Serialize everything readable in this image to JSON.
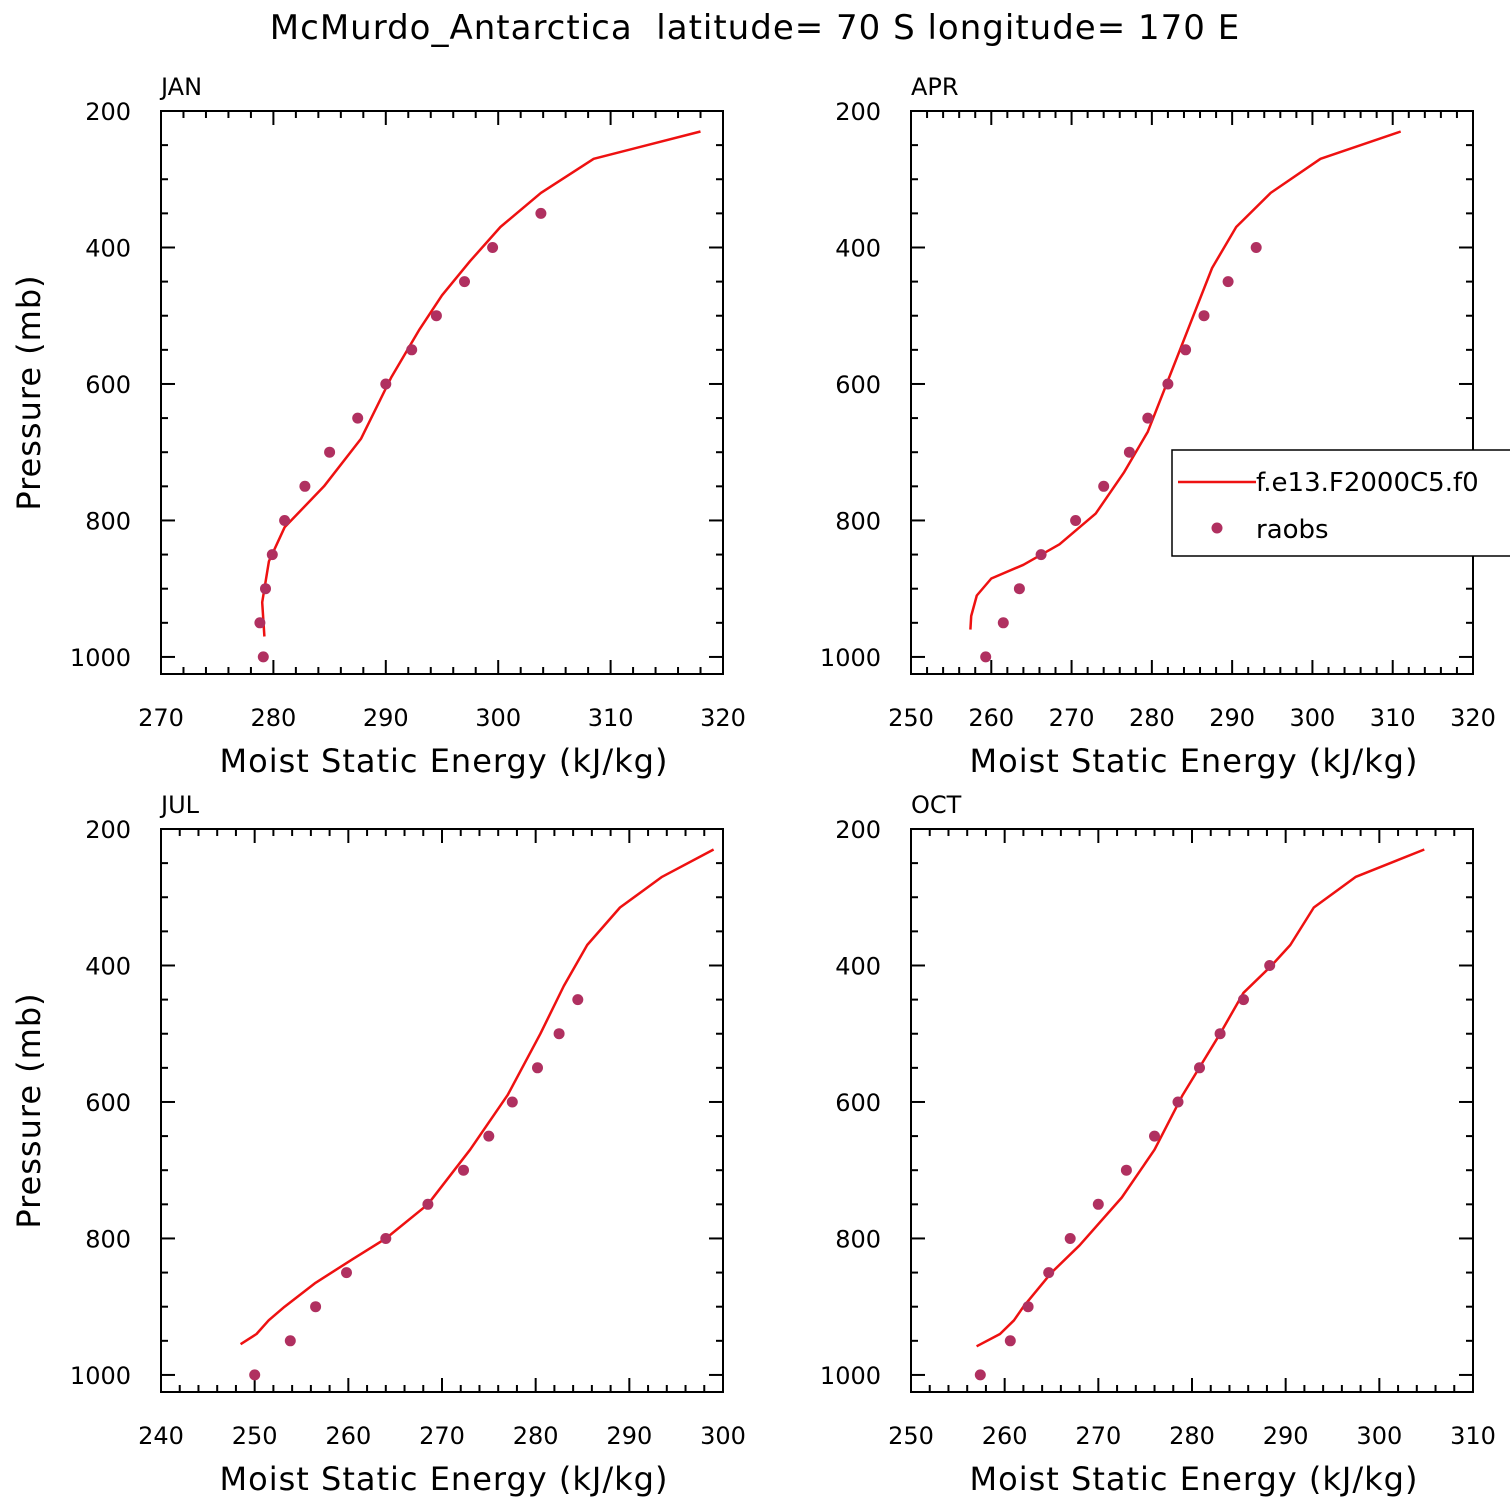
{
  "figure": {
    "title": "McMurdo_Antarctica  latitude= 70 S longitude= 170 E",
    "colors": {
      "model": "#ee1111",
      "obs": "#b03060",
      "axes": "#000000"
    },
    "legend": {
      "placement": "right-middle of APR panel (clipped by figure edge)",
      "entries": [
        {
          "label": "f.e13.F2000C5.f0",
          "style": "line",
          "color": "#ee1111"
        },
        {
          "label": "raobs",
          "style": "marker",
          "color": "#b03060"
        }
      ]
    }
  },
  "chart_data": [
    {
      "type": "line",
      "panel_label": "JAN",
      "xlabel": "Moist Static Energy (kJ/kg)",
      "ylabel": "Pressure (mb)",
      "xlim": [
        270,
        320
      ],
      "xticks": [
        270,
        280,
        290,
        300,
        310,
        320
      ],
      "ylim": [
        200,
        1025
      ],
      "yticks": [
        200,
        400,
        600,
        800,
        1000
      ],
      "y_inverted": true,
      "series": [
        {
          "name": "f.e13.F2000C5.f0",
          "kind": "line",
          "x": [
            318.0,
            308.5,
            303.8,
            300.2,
            297.5,
            295.0,
            293.0,
            290.5,
            287.8,
            284.5,
            281.0,
            279.6,
            279.0,
            279.2
          ],
          "y": [
            230,
            270,
            320,
            370,
            420,
            470,
            520,
            590,
            680,
            750,
            810,
            860,
            920,
            970
          ]
        },
        {
          "name": "raobs",
          "kind": "scatter",
          "x": [
            303.8,
            299.5,
            297.0,
            294.5,
            292.3,
            290.0,
            287.5,
            285.0,
            282.8,
            281.0,
            279.9,
            279.3,
            278.8,
            279.1
          ],
          "y": [
            350,
            400,
            450,
            500,
            550,
            600,
            650,
            700,
            750,
            800,
            850,
            900,
            950,
            1000
          ]
        }
      ]
    },
    {
      "type": "line",
      "panel_label": "APR",
      "xlabel": "Moist Static Energy (kJ/kg)",
      "ylabel": "",
      "xlim": [
        250,
        320
      ],
      "xticks": [
        250,
        260,
        270,
        280,
        290,
        300,
        310,
        320
      ],
      "ylim": [
        200,
        1025
      ],
      "yticks": [
        200,
        400,
        600,
        800,
        1000
      ],
      "y_inverted": true,
      "series": [
        {
          "name": "f.e13.F2000C5.f0",
          "kind": "line",
          "x": [
            311.0,
            301.0,
            294.8,
            290.5,
            287.5,
            285.5,
            283.5,
            281.5,
            279.5,
            276.5,
            273.0,
            268.5,
            264.0,
            260.0,
            258.2,
            257.5,
            257.4
          ],
          "y": [
            230,
            270,
            320,
            370,
            430,
            490,
            550,
            610,
            670,
            730,
            790,
            835,
            865,
            885,
            910,
            940,
            960
          ]
        },
        {
          "name": "raobs",
          "kind": "scatter",
          "x": [
            293.0,
            289.5,
            286.5,
            284.2,
            282.0,
            279.5,
            277.2,
            274.0,
            270.5,
            266.2,
            263.5,
            261.5,
            259.3
          ],
          "y": [
            400,
            450,
            500,
            550,
            600,
            650,
            700,
            750,
            800,
            850,
            900,
            950,
            1000
          ]
        }
      ]
    },
    {
      "type": "line",
      "panel_label": "JUL",
      "xlabel": "Moist Static Energy (kJ/kg)",
      "ylabel": "Pressure (mb)",
      "xlim": [
        240,
        300
      ],
      "xticks": [
        240,
        250,
        260,
        270,
        280,
        290,
        300
      ],
      "ylim": [
        200,
        1025
      ],
      "yticks": [
        200,
        400,
        600,
        800,
        1000
      ],
      "y_inverted": true,
      "series": [
        {
          "name": "f.e13.F2000C5.f0",
          "kind": "line",
          "x": [
            299.0,
            293.5,
            289.0,
            285.5,
            283.0,
            280.5,
            277.0,
            273.0,
            268.5,
            264.0,
            260.5,
            256.5,
            253.2,
            251.5,
            250.2,
            248.5
          ],
          "y": [
            230,
            270,
            315,
            370,
            430,
            500,
            590,
            670,
            750,
            800,
            830,
            865,
            900,
            920,
            940,
            955
          ]
        },
        {
          "name": "raobs",
          "kind": "scatter",
          "x": [
            284.5,
            282.5,
            280.2,
            277.5,
            275.0,
            272.3,
            268.5,
            264.0,
            259.8,
            256.5,
            253.8,
            250.0
          ],
          "y": [
            450,
            500,
            550,
            600,
            650,
            700,
            750,
            800,
            850,
            900,
            950,
            1000
          ]
        }
      ]
    },
    {
      "type": "line",
      "panel_label": "OCT",
      "xlabel": "Moist Static Energy (kJ/kg)",
      "ylabel": "",
      "xlim": [
        250,
        310
      ],
      "xticks": [
        250,
        260,
        270,
        280,
        290,
        300,
        310
      ],
      "ylim": [
        200,
        1025
      ],
      "yticks": [
        200,
        400,
        600,
        800,
        1000
      ],
      "y_inverted": true,
      "series": [
        {
          "name": "f.e13.F2000C5.f0",
          "kind": "line",
          "x": [
            304.8,
            297.5,
            293.0,
            290.5,
            288.5,
            285.5,
            283.0,
            279.0,
            276.0,
            272.5,
            268.0,
            265.0,
            262.0,
            261.0,
            259.5,
            257.0
          ],
          "y": [
            230,
            270,
            315,
            370,
            400,
            440,
            500,
            590,
            670,
            740,
            810,
            850,
            900,
            920,
            940,
            958
          ]
        },
        {
          "name": "raobs",
          "kind": "scatter",
          "x": [
            288.3,
            285.5,
            283.0,
            280.8,
            278.5,
            276.0,
            273.0,
            270.0,
            267.0,
            264.7,
            262.5,
            260.6,
            257.4
          ],
          "y": [
            400,
            450,
            500,
            550,
            600,
            650,
            700,
            750,
            800,
            850,
            900,
            950,
            1000
          ]
        }
      ]
    }
  ]
}
